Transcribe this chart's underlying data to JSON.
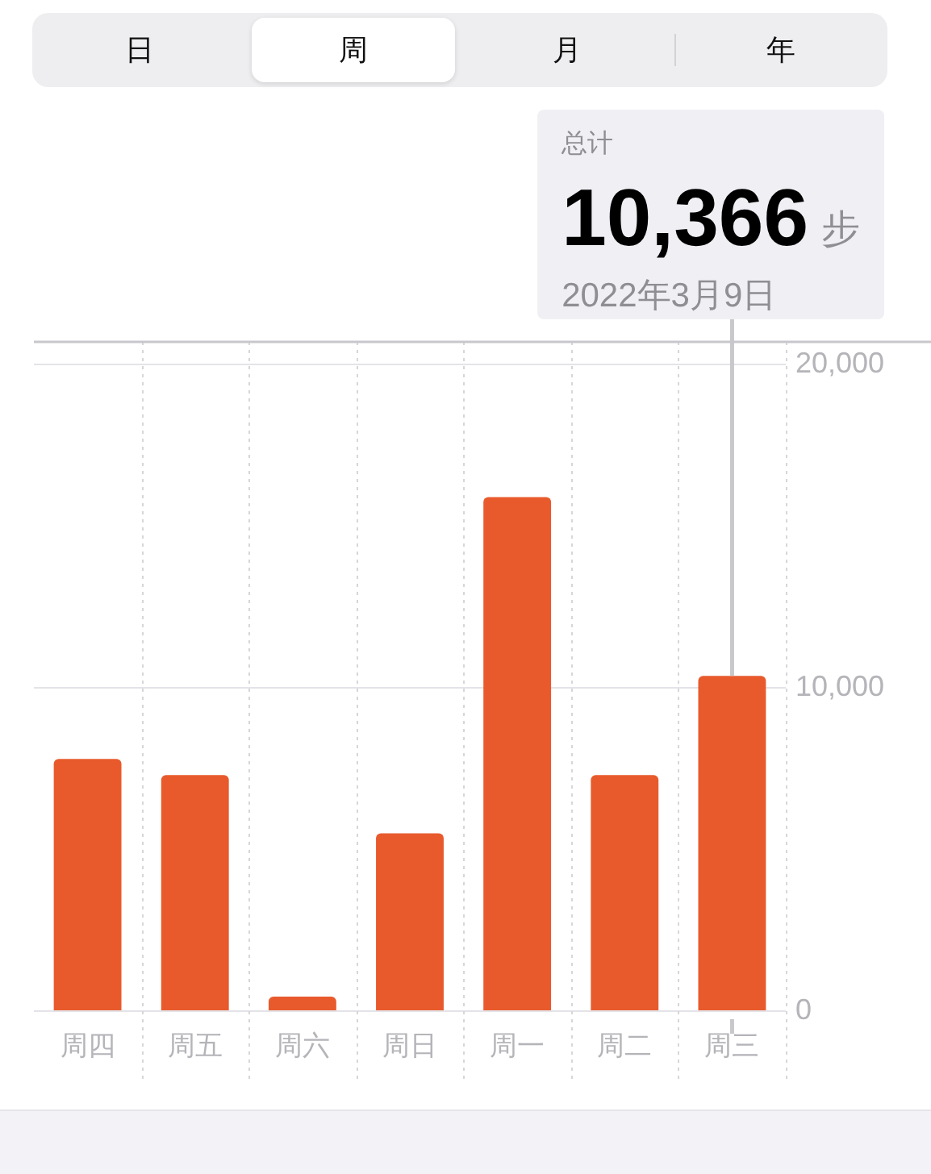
{
  "chart_data": {
    "type": "bar",
    "categories": [
      "周四",
      "周五",
      "周六",
      "周日",
      "周一",
      "周二",
      "周三"
    ],
    "values": [
      7800,
      7300,
      450,
      5500,
      15900,
      7300,
      10366
    ],
    "color": "#e85a2c",
    "ylim": [
      0,
      20700
    ],
    "yticks": [
      0,
      {
        "value": 10000,
        "label": "10,000"
      },
      {
        "value": 20000,
        "label": "20,000"
      }
    ],
    "grid": true,
    "annotations": [
      "日",
      "周",
      "月",
      "年",
      "总计",
      {
        "text": "10,366",
        "x": "周三",
        "y": 10366
      },
      "步",
      "2022年3月9日"
    ]
  }
}
